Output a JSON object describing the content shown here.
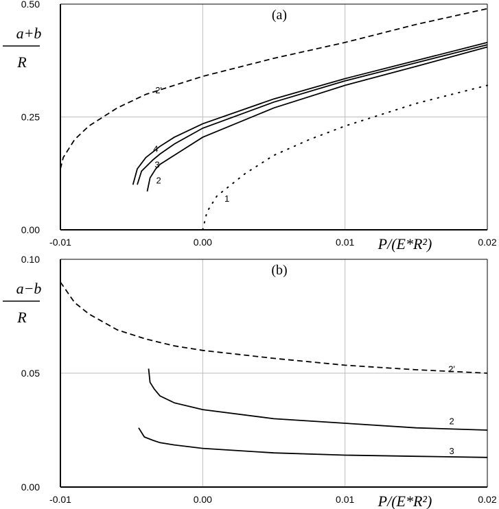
{
  "chart_data": [
    {
      "type": "line",
      "title": "(a)",
      "ylabel": "a+b / R",
      "ylabel_num": "a+b",
      "ylabel_den": "R",
      "xlabel": "P/(E*R²)",
      "xlim": [
        -0.01,
        0.02
      ],
      "ylim": [
        0,
        0.5
      ],
      "xticks": [
        "-0.01",
        "0.00",
        "0.01",
        "0.02"
      ],
      "yticks": [
        "0.00",
        "0.25",
        "0.50"
      ],
      "grid": true,
      "series": [
        {
          "name": "2'",
          "style": "dashed",
          "x": [
            -0.01,
            -0.0098,
            -0.009,
            -0.008,
            -0.006,
            -0.004,
            -0.002,
            0,
            0.005,
            0.01,
            0.015,
            0.02
          ],
          "y": [
            0.135,
            0.16,
            0.2,
            0.23,
            0.27,
            0.3,
            0.32,
            0.34,
            0.38,
            0.415,
            0.455,
            0.49
          ],
          "label_at": [
            -0.0031,
            0.31
          ]
        },
        {
          "name": "4",
          "style": "solid",
          "x": [
            -0.0049,
            -0.0046,
            -0.004,
            -0.003,
            -0.002,
            0,
            0.005,
            0.01,
            0.015,
            0.02
          ],
          "y": [
            0.1,
            0.135,
            0.16,
            0.185,
            0.205,
            0.235,
            0.29,
            0.335,
            0.375,
            0.415
          ],
          "label_at": [
            -0.0033,
            0.18
          ]
        },
        {
          "name": "3",
          "style": "solid",
          "x": [
            -0.0046,
            -0.0043,
            -0.0035,
            -0.003,
            -0.002,
            0,
            0.005,
            0.01,
            0.015,
            0.02
          ],
          "y": [
            0.1,
            0.13,
            0.155,
            0.168,
            0.19,
            0.225,
            0.283,
            0.33,
            0.37,
            0.41
          ],
          "label_at": [
            -0.0032,
            0.145
          ]
        },
        {
          "name": "2",
          "style": "solid",
          "x": [
            -0.0039,
            -0.0037,
            -0.0033,
            -0.003,
            -0.002,
            0,
            0.005,
            0.01,
            0.015,
            0.02
          ],
          "y": [
            0.085,
            0.115,
            0.135,
            0.145,
            0.165,
            0.205,
            0.27,
            0.32,
            0.362,
            0.405
          ],
          "label_at": [
            -0.0031,
            0.11
          ]
        },
        {
          "name": "1",
          "style": "dotted",
          "x": [
            0,
            0.0003,
            0.001,
            0.002,
            0.003,
            0.005,
            0.0075,
            0.01,
            0.015,
            0.02
          ],
          "y": [
            0,
            0.04,
            0.075,
            0.1,
            0.125,
            0.165,
            0.2,
            0.23,
            0.28,
            0.32
          ],
          "label_at": [
            0.0017,
            0.07
          ]
        }
      ]
    },
    {
      "type": "line",
      "title": "(b)",
      "ylabel": "a-b / R",
      "ylabel_num": "a−b",
      "ylabel_den": "R",
      "xlabel": "P/(E*R²)",
      "xlim": [
        -0.01,
        0.02
      ],
      "ylim": [
        0,
        0.1
      ],
      "xticks": [
        "-0.01",
        "0.00",
        "0.01",
        "0.02"
      ],
      "yticks": [
        "0.00",
        "0.05",
        "0.10"
      ],
      "grid": true,
      "series": [
        {
          "name": "2'",
          "style": "dashed",
          "x": [
            -0.01,
            -0.009,
            -0.008,
            -0.006,
            -0.004,
            -0.002,
            0,
            0.005,
            0.01,
            0.015,
            0.02
          ],
          "y": [
            0.09,
            0.081,
            0.076,
            0.069,
            0.065,
            0.062,
            0.06,
            0.0565,
            0.0535,
            0.0515,
            0.05
          ],
          "label_at": [
            0.0175,
            0.052
          ]
        },
        {
          "name": "2",
          "style": "solid",
          "x": [
            -0.0038,
            -0.0037,
            -0.0034,
            -0.003,
            -0.002,
            0,
            0.005,
            0.01,
            0.015,
            0.02
          ],
          "y": [
            0.052,
            0.046,
            0.043,
            0.04,
            0.037,
            0.034,
            0.03,
            0.028,
            0.026,
            0.025
          ],
          "label_at": [
            0.0175,
            0.029
          ]
        },
        {
          "name": "3",
          "style": "solid",
          "x": [
            -0.0045,
            -0.0041,
            -0.0035,
            -0.003,
            -0.002,
            0,
            0.005,
            0.01,
            0.015,
            0.02
          ],
          "y": [
            0.026,
            0.022,
            0.0205,
            0.0195,
            0.0185,
            0.017,
            0.015,
            0.014,
            0.0135,
            0.013
          ],
          "label_at": [
            0.0175,
            0.016
          ]
        }
      ]
    }
  ]
}
